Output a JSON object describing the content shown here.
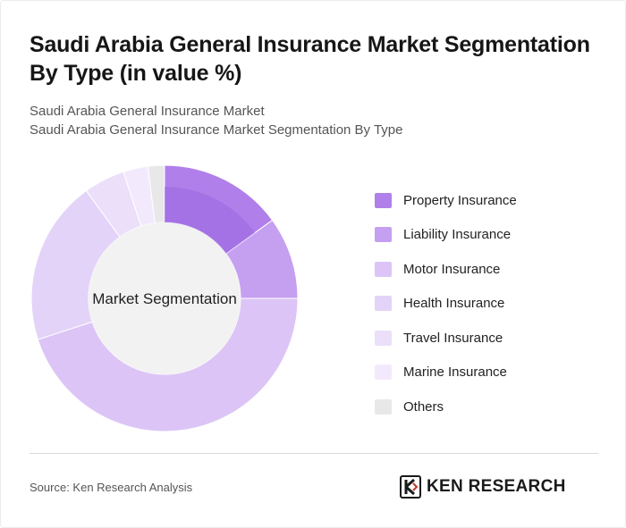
{
  "page": {
    "title": "Saudi Arabia General Insurance Market Segmentation By Type (in value %)",
    "subtitle_line1": "Saudi Arabia General Insurance Market",
    "subtitle_line2": "Saudi Arabia General Insurance Market Segmentation By Type",
    "source": "Source: Ken Research Analysis",
    "logo_text": "KEN RESEARCH"
  },
  "chart_data": {
    "type": "pie",
    "variant": "donut",
    "center_label": "Market Segmentation",
    "legend_position": "right",
    "slices": [
      {
        "label": "Property Insurance",
        "value": 15,
        "color": "#b07fe9"
      },
      {
        "label": "Liability Insurance",
        "value": 10,
        "color": "#c59ff0"
      },
      {
        "label": "Motor Insurance",
        "value": 45,
        "color": "#dcc5f6"
      },
      {
        "label": "Health Insurance",
        "value": 20,
        "color": "#e4d3f8"
      },
      {
        "label": "Travel Insurance",
        "value": 5,
        "color": "#ecdffa"
      },
      {
        "label": "Marine Insurance",
        "value": 3,
        "color": "#f2eafc"
      },
      {
        "label": "Others",
        "value": 2,
        "color": "#e8e8e8"
      }
    ],
    "center_color": "#f2f2f2",
    "highlight_color": "#9c68e2"
  }
}
